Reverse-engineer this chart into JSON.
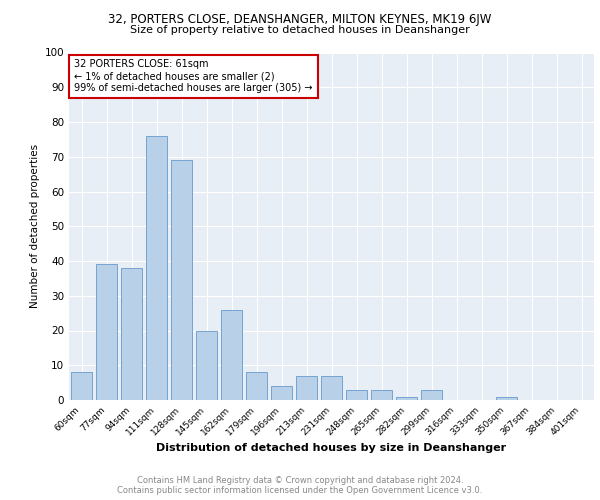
{
  "title1": "32, PORTERS CLOSE, DEANSHANGER, MILTON KEYNES, MK19 6JW",
  "title2": "Size of property relative to detached houses in Deanshanger",
  "xlabel": "Distribution of detached houses by size in Deanshanger",
  "ylabel": "Number of detached properties",
  "categories": [
    "60sqm",
    "77sqm",
    "94sqm",
    "111sqm",
    "128sqm",
    "145sqm",
    "162sqm",
    "179sqm",
    "196sqm",
    "213sqm",
    "231sqm",
    "248sqm",
    "265sqm",
    "282sqm",
    "299sqm",
    "316sqm",
    "333sqm",
    "350sqm",
    "367sqm",
    "384sqm",
    "401sqm"
  ],
  "values": [
    8,
    39,
    38,
    76,
    69,
    20,
    26,
    8,
    4,
    7,
    7,
    3,
    3,
    1,
    3,
    0,
    0,
    1,
    0,
    0,
    0
  ],
  "bar_color": "#b8d0e8",
  "bar_edge_color": "#6699cc",
  "annotation_text": "32 PORTERS CLOSE: 61sqm\n← 1% of detached houses are smaller (2)\n99% of semi-detached houses are larger (305) →",
  "annotation_box_color": "#ffffff",
  "annotation_border_color": "#cc0000",
  "footer_text": "Contains HM Land Registry data © Crown copyright and database right 2024.\nContains public sector information licensed under the Open Government Licence v3.0.",
  "ylim": [
    0,
    100
  ],
  "yticks": [
    0,
    10,
    20,
    30,
    40,
    50,
    60,
    70,
    80,
    90,
    100
  ],
  "plot_bg_color": "#e8eef5"
}
